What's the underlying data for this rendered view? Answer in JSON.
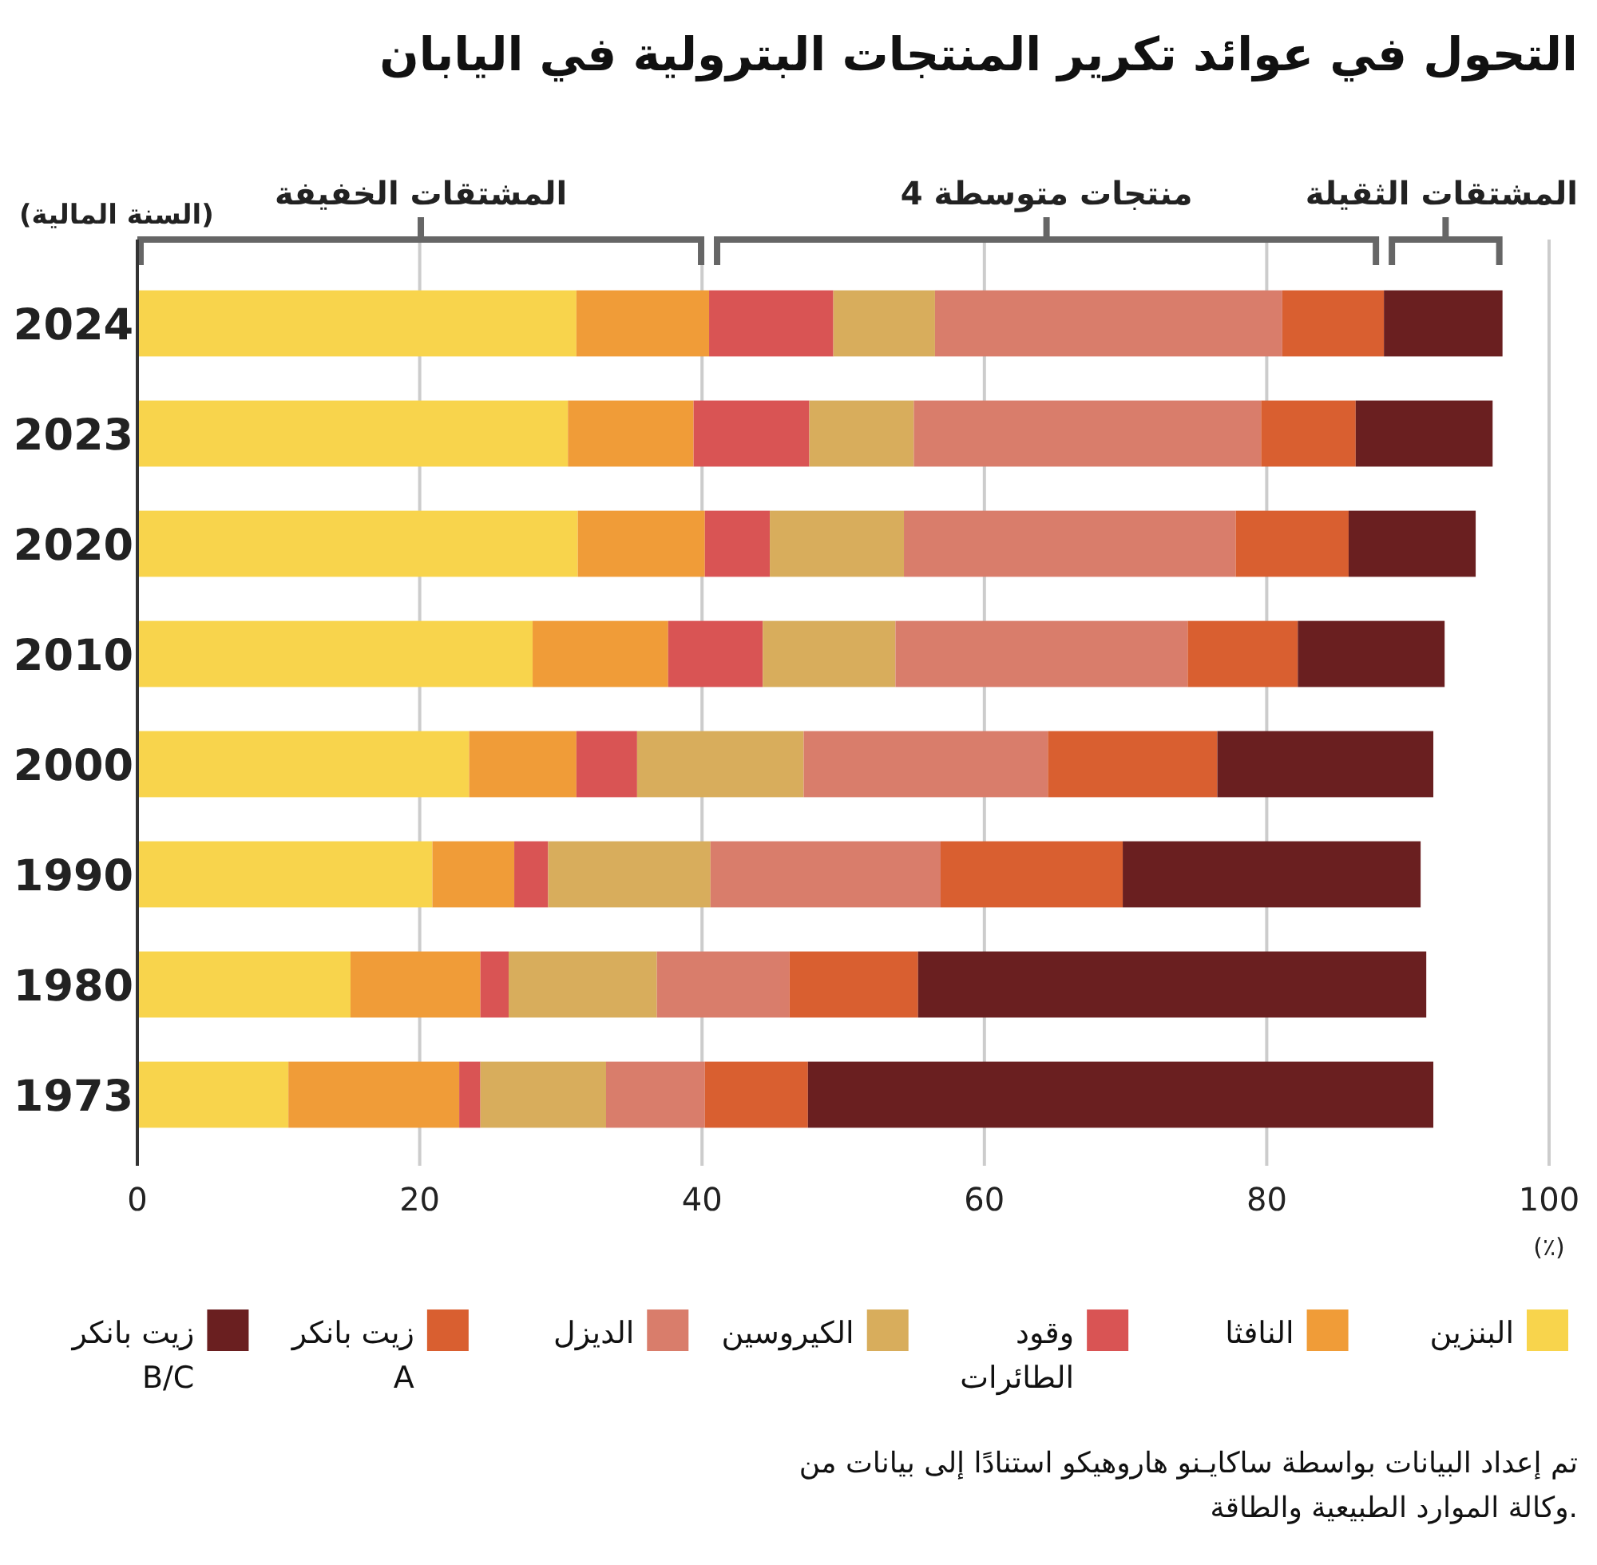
{
  "chart_data": {
    "type": "bar",
    "orientation": "horizontal",
    "stacked": true,
    "title": "التحول في عوائد تكرير المنتجات البترولية في اليابان",
    "ylabel": "(السنة المالية)",
    "xlabel": "(٪)",
    "categories": [
      "2024",
      "2023",
      "2020",
      "2010",
      "2000",
      "1990",
      "1980",
      "1973"
    ],
    "series": [
      {
        "name": "البنزين",
        "color": "#f8d44c",
        "values": [
          31.1,
          30.5,
          31.2,
          28.0,
          23.5,
          20.9,
          15.1,
          10.7
        ]
      },
      {
        "name": "النافثا",
        "color": "#f09c38",
        "values": [
          9.4,
          8.9,
          9.0,
          9.6,
          7.6,
          5.8,
          9.2,
          12.1
        ]
      },
      {
        "name": "وقود الطائرات",
        "color": "#d95454",
        "values": [
          8.8,
          8.2,
          4.6,
          6.7,
          4.3,
          2.4,
          2.0,
          1.5
        ]
      },
      {
        "name": "الكيروسين",
        "color": "#d8ad5c",
        "values": [
          7.2,
          7.4,
          9.5,
          9.4,
          11.8,
          11.5,
          10.5,
          8.9
        ]
      },
      {
        "name": "الديزل",
        "color": "#d97d6b",
        "values": [
          24.6,
          24.6,
          23.5,
          20.7,
          17.3,
          16.3,
          9.4,
          7.0
        ]
      },
      {
        "name": "زيت بانكر A",
        "color": "#d95f30",
        "values": [
          7.2,
          6.7,
          8.0,
          7.8,
          12.0,
          12.9,
          9.1,
          7.3
        ]
      },
      {
        "name": "زيت بانكر B/C",
        "color": "#6a1f20",
        "values": [
          8.4,
          9.7,
          9.0,
          10.4,
          15.3,
          21.1,
          36.0,
          44.3
        ]
      }
    ],
    "xlim": [
      0,
      100
    ],
    "xticks": [
      0,
      20,
      40,
      60,
      80,
      100
    ],
    "grid": "x",
    "legend": "bottom",
    "annotations": [
      "المشتقات الخفيفة",
      "4 منتجات متوسطة",
      "المشتقات الثقيلة",
      "تم إعداد البيانات بواسطة ساكايـنو هاروهيكو استنادًا إلى بيانات من وكالة الموارد الطبيعية والطاقة."
    ]
  }
}
